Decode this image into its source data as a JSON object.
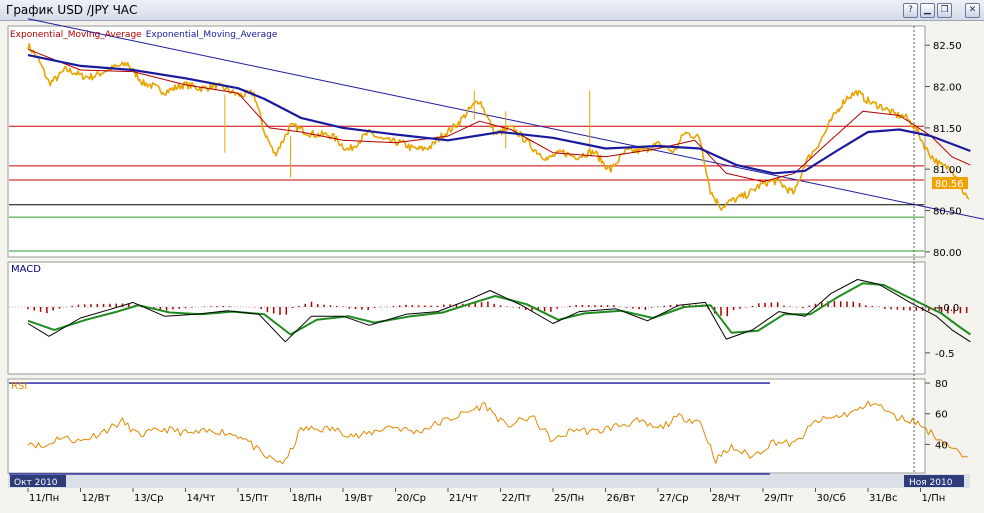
{
  "window": {
    "title": "График USD /JPY  ЧАС",
    "buttons": [
      {
        "name": "help-button",
        "glyph": "?"
      },
      {
        "name": "minimize-button",
        "glyph": "▁"
      },
      {
        "name": "restore-button",
        "glyph": "❐"
      },
      {
        "name": "close-button",
        "glyph": "✕"
      }
    ]
  },
  "colors": {
    "price": "#e8a400",
    "ema_fast": "#b00000",
    "ema_slow": "#1a1aa0",
    "trendline": "#1a1aa0",
    "level_red": "#cc0000",
    "level_green": "#2e9a2e",
    "level_black": "#000000",
    "macd_line": "#000000",
    "macd_signal": "#1e8c1e",
    "macd_hist": "#b00000",
    "rsi_line": "#e08a00",
    "rsi_levels": "#1a1aa0",
    "price_tag": "#f2a200"
  },
  "chart_data": [
    {
      "type": "line",
      "title": "USD/JPY",
      "legend": [
        "Exponential_Moving_Average",
        "Exponential_Moving_Average"
      ],
      "y_ticks": [
        "82.50",
        "82.00",
        "81.50",
        "81.00",
        "80.50",
        "80.00"
      ],
      "ylim": [
        79.95,
        82.72
      ],
      "current_price_label": "80.56",
      "horizontal_levels": [
        {
          "value": 81.52,
          "color": "red"
        },
        {
          "value": 81.04,
          "color": "red"
        },
        {
          "value": 80.87,
          "color": "red"
        },
        {
          "value": 80.57,
          "color": "black"
        },
        {
          "value": 80.42,
          "color": "green"
        },
        {
          "value": 80.01,
          "color": "green"
        }
      ],
      "trendline": [
        {
          "x": 0,
          "y": 82.82
        },
        {
          "x": 21.1,
          "y": 80.01
        }
      ],
      "price_keypoints": [
        {
          "x": 0.0,
          "y": 82.5
        },
        {
          "x": 0.2,
          "y": 82.3
        },
        {
          "x": 0.4,
          "y": 82.05
        },
        {
          "x": 0.7,
          "y": 82.2
        },
        {
          "x": 1.0,
          "y": 82.12
        },
        {
          "x": 1.3,
          "y": 82.15
        },
        {
          "x": 1.6,
          "y": 82.2
        },
        {
          "x": 1.9,
          "y": 82.3
        },
        {
          "x": 2.2,
          "y": 82.02
        },
        {
          "x": 2.6,
          "y": 81.96
        },
        {
          "x": 3.0,
          "y": 82.0
        },
        {
          "x": 3.5,
          "y": 82.0
        },
        {
          "x": 4.0,
          "y": 81.92
        },
        {
          "x": 4.3,
          "y": 81.9
        },
        {
          "x": 4.5,
          "y": 81.45
        },
        {
          "x": 4.7,
          "y": 81.2
        },
        {
          "x": 5.0,
          "y": 81.5
        },
        {
          "x": 5.4,
          "y": 81.45
        },
        {
          "x": 5.8,
          "y": 81.38
        },
        {
          "x": 6.1,
          "y": 81.25
        },
        {
          "x": 6.5,
          "y": 81.42
        },
        {
          "x": 6.9,
          "y": 81.35
        },
        {
          "x": 7.3,
          "y": 81.25
        },
        {
          "x": 7.7,
          "y": 81.28
        },
        {
          "x": 8.0,
          "y": 81.45
        },
        {
          "x": 8.3,
          "y": 81.65
        },
        {
          "x": 8.6,
          "y": 81.82
        },
        {
          "x": 8.9,
          "y": 81.45
        },
        {
          "x": 9.2,
          "y": 81.48
        },
        {
          "x": 9.5,
          "y": 81.35
        },
        {
          "x": 9.9,
          "y": 81.1
        },
        {
          "x": 10.2,
          "y": 81.22
        },
        {
          "x": 10.5,
          "y": 81.15
        },
        {
          "x": 10.8,
          "y": 81.2
        },
        {
          "x": 11.1,
          "y": 81.0
        },
        {
          "x": 11.4,
          "y": 81.2
        },
        {
          "x": 11.7,
          "y": 81.25
        },
        {
          "x": 12.0,
          "y": 81.28
        },
        {
          "x": 12.3,
          "y": 81.22
        },
        {
          "x": 12.5,
          "y": 81.45
        },
        {
          "x": 12.8,
          "y": 81.35
        },
        {
          "x": 13.0,
          "y": 80.75
        },
        {
          "x": 13.2,
          "y": 80.55
        },
        {
          "x": 13.5,
          "y": 80.62
        },
        {
          "x": 13.9,
          "y": 80.8
        },
        {
          "x": 14.3,
          "y": 80.85
        },
        {
          "x": 14.6,
          "y": 80.72
        },
        {
          "x": 14.8,
          "y": 81.05
        },
        {
          "x": 15.0,
          "y": 81.25
        },
        {
          "x": 15.3,
          "y": 81.6
        },
        {
          "x": 15.6,
          "y": 81.85
        },
        {
          "x": 15.8,
          "y": 81.95
        },
        {
          "x": 16.1,
          "y": 81.78
        },
        {
          "x": 16.4,
          "y": 81.7
        },
        {
          "x": 16.7,
          "y": 81.65
        },
        {
          "x": 16.9,
          "y": 81.48
        },
        {
          "x": 17.1,
          "y": 81.25
        },
        {
          "x": 17.4,
          "y": 81.05
        },
        {
          "x": 17.6,
          "y": 80.98
        },
        {
          "x": 17.8,
          "y": 80.75
        },
        {
          "x": 17.95,
          "y": 80.6
        }
      ],
      "ema_fast_keypoints": [
        {
          "x": 0.0,
          "y": 82.45
        },
        {
          "x": 1.0,
          "y": 82.2
        },
        {
          "x": 2.0,
          "y": 82.18
        },
        {
          "x": 3.0,
          "y": 82.02
        },
        {
          "x": 4.0,
          "y": 81.92
        },
        {
          "x": 4.6,
          "y": 81.5
        },
        {
          "x": 5.2,
          "y": 81.45
        },
        {
          "x": 6.0,
          "y": 81.35
        },
        {
          "x": 7.0,
          "y": 81.32
        },
        {
          "x": 8.0,
          "y": 81.4
        },
        {
          "x": 8.6,
          "y": 81.58
        },
        {
          "x": 9.2,
          "y": 81.48
        },
        {
          "x": 10.0,
          "y": 81.2
        },
        {
          "x": 11.0,
          "y": 81.15
        },
        {
          "x": 12.0,
          "y": 81.25
        },
        {
          "x": 12.7,
          "y": 81.35
        },
        {
          "x": 13.3,
          "y": 80.95
        },
        {
          "x": 14.0,
          "y": 80.85
        },
        {
          "x": 14.6,
          "y": 80.95
        },
        {
          "x": 15.2,
          "y": 81.3
        },
        {
          "x": 15.9,
          "y": 81.7
        },
        {
          "x": 16.6,
          "y": 81.65
        },
        {
          "x": 17.2,
          "y": 81.4
        },
        {
          "x": 17.6,
          "y": 81.15
        },
        {
          "x": 17.95,
          "y": 81.05
        }
      ],
      "ema_slow_keypoints": [
        {
          "x": 0.0,
          "y": 82.38
        },
        {
          "x": 1.0,
          "y": 82.25
        },
        {
          "x": 2.0,
          "y": 82.2
        },
        {
          "x": 3.0,
          "y": 82.1
        },
        {
          "x": 4.0,
          "y": 81.98
        },
        {
          "x": 4.5,
          "y": 81.85
        },
        {
          "x": 5.2,
          "y": 81.62
        },
        {
          "x": 6.0,
          "y": 81.5
        },
        {
          "x": 7.0,
          "y": 81.42
        },
        {
          "x": 8.0,
          "y": 81.35
        },
        {
          "x": 9.0,
          "y": 81.45
        },
        {
          "x": 10.0,
          "y": 81.38
        },
        {
          "x": 11.0,
          "y": 81.25
        },
        {
          "x": 12.0,
          "y": 81.28
        },
        {
          "x": 12.8,
          "y": 81.25
        },
        {
          "x": 13.5,
          "y": 81.05
        },
        {
          "x": 14.2,
          "y": 80.95
        },
        {
          "x": 14.8,
          "y": 80.98
        },
        {
          "x": 15.4,
          "y": 81.22
        },
        {
          "x": 16.0,
          "y": 81.45
        },
        {
          "x": 16.6,
          "y": 81.48
        },
        {
          "x": 17.2,
          "y": 81.4
        },
        {
          "x": 17.7,
          "y": 81.28
        },
        {
          "x": 17.95,
          "y": 81.22
        }
      ]
    },
    {
      "type": "line",
      "title": "MACD",
      "y_ticks": [
        "+0.0",
        "-0.5"
      ],
      "ylim": [
        -0.72,
        0.48
      ],
      "macd_keypoints": [
        {
          "x": 0.0,
          "y": -0.18
        },
        {
          "x": 0.4,
          "y": -0.32
        },
        {
          "x": 1.0,
          "y": -0.12
        },
        {
          "x": 1.6,
          "y": -0.02
        },
        {
          "x": 2.0,
          "y": 0.05
        },
        {
          "x": 2.6,
          "y": -0.1
        },
        {
          "x": 3.2,
          "y": -0.08
        },
        {
          "x": 3.8,
          "y": -0.04
        },
        {
          "x": 4.4,
          "y": -0.08
        },
        {
          "x": 4.9,
          "y": -0.38
        },
        {
          "x": 5.4,
          "y": -0.1
        },
        {
          "x": 6.0,
          "y": -0.1
        },
        {
          "x": 6.5,
          "y": -0.2
        },
        {
          "x": 7.2,
          "y": -0.08
        },
        {
          "x": 7.8,
          "y": -0.05
        },
        {
          "x": 8.4,
          "y": 0.08
        },
        {
          "x": 8.8,
          "y": 0.18
        },
        {
          "x": 9.4,
          "y": 0.02
        },
        {
          "x": 10.0,
          "y": -0.18
        },
        {
          "x": 10.5,
          "y": -0.05
        },
        {
          "x": 11.2,
          "y": -0.02
        },
        {
          "x": 11.8,
          "y": -0.15
        },
        {
          "x": 12.4,
          "y": 0.02
        },
        {
          "x": 12.9,
          "y": 0.05
        },
        {
          "x": 13.3,
          "y": -0.35
        },
        {
          "x": 13.8,
          "y": -0.25
        },
        {
          "x": 14.3,
          "y": -0.05
        },
        {
          "x": 14.8,
          "y": -0.1
        },
        {
          "x": 15.3,
          "y": 0.15
        },
        {
          "x": 15.8,
          "y": 0.3
        },
        {
          "x": 16.2,
          "y": 0.25
        },
        {
          "x": 16.8,
          "y": 0.05
        },
        {
          "x": 17.3,
          "y": -0.1
        },
        {
          "x": 17.6,
          "y": -0.25
        },
        {
          "x": 17.95,
          "y": -0.38
        }
      ],
      "signal_keypoints": [
        {
          "x": 0.0,
          "y": -0.15
        },
        {
          "x": 0.5,
          "y": -0.25
        },
        {
          "x": 1.1,
          "y": -0.14
        },
        {
          "x": 1.7,
          "y": -0.05
        },
        {
          "x": 2.1,
          "y": 0.02
        },
        {
          "x": 2.7,
          "y": -0.06
        },
        {
          "x": 3.3,
          "y": -0.08
        },
        {
          "x": 3.9,
          "y": -0.05
        },
        {
          "x": 4.5,
          "y": -0.08
        },
        {
          "x": 5.0,
          "y": -0.3
        },
        {
          "x": 5.5,
          "y": -0.14
        },
        {
          "x": 6.1,
          "y": -0.1
        },
        {
          "x": 6.6,
          "y": -0.17
        },
        {
          "x": 7.3,
          "y": -0.1
        },
        {
          "x": 7.9,
          "y": -0.06
        },
        {
          "x": 8.5,
          "y": 0.05
        },
        {
          "x": 8.9,
          "y": 0.12
        },
        {
          "x": 9.5,
          "y": 0.03
        },
        {
          "x": 10.1,
          "y": -0.14
        },
        {
          "x": 10.6,
          "y": -0.07
        },
        {
          "x": 11.3,
          "y": -0.04
        },
        {
          "x": 11.9,
          "y": -0.12
        },
        {
          "x": 12.5,
          "y": 0.0
        },
        {
          "x": 13.0,
          "y": 0.02
        },
        {
          "x": 13.4,
          "y": -0.28
        },
        {
          "x": 13.9,
          "y": -0.26
        },
        {
          "x": 14.4,
          "y": -0.08
        },
        {
          "x": 14.9,
          "y": -0.08
        },
        {
          "x": 15.4,
          "y": 0.1
        },
        {
          "x": 15.9,
          "y": 0.26
        },
        {
          "x": 16.3,
          "y": 0.24
        },
        {
          "x": 16.9,
          "y": 0.07
        },
        {
          "x": 17.4,
          "y": -0.07
        },
        {
          "x": 17.7,
          "y": -0.2
        },
        {
          "x": 17.95,
          "y": -0.3
        }
      ]
    },
    {
      "type": "line",
      "title": "RSI",
      "y_ticks": [
        "80",
        "60",
        "40"
      ],
      "ylim": [
        22,
        82
      ],
      "levels": [
        80,
        20
      ],
      "rsi_keypoints": [
        {
          "x": 0.0,
          "y": 42
        },
        {
          "x": 0.3,
          "y": 38
        },
        {
          "x": 0.6,
          "y": 45
        },
        {
          "x": 1.0,
          "y": 42
        },
        {
          "x": 1.4,
          "y": 48
        },
        {
          "x": 1.8,
          "y": 55
        },
        {
          "x": 2.1,
          "y": 46
        },
        {
          "x": 2.6,
          "y": 50
        },
        {
          "x": 3.1,
          "y": 47
        },
        {
          "x": 3.6,
          "y": 49
        },
        {
          "x": 4.1,
          "y": 45
        },
        {
          "x": 4.5,
          "y": 32
        },
        {
          "x": 4.9,
          "y": 28
        },
        {
          "x": 5.2,
          "y": 50
        },
        {
          "x": 5.8,
          "y": 50
        },
        {
          "x": 6.3,
          "y": 45
        },
        {
          "x": 6.9,
          "y": 52
        },
        {
          "x": 7.4,
          "y": 48
        },
        {
          "x": 7.9,
          "y": 55
        },
        {
          "x": 8.3,
          "y": 60
        },
        {
          "x": 8.7,
          "y": 66
        },
        {
          "x": 9.1,
          "y": 52
        },
        {
          "x": 9.6,
          "y": 58
        },
        {
          "x": 10.0,
          "y": 42
        },
        {
          "x": 10.4,
          "y": 50
        },
        {
          "x": 10.8,
          "y": 48
        },
        {
          "x": 11.2,
          "y": 52
        },
        {
          "x": 11.6,
          "y": 55
        },
        {
          "x": 12.0,
          "y": 50
        },
        {
          "x": 12.4,
          "y": 58
        },
        {
          "x": 12.8,
          "y": 55
        },
        {
          "x": 13.1,
          "y": 30
        },
        {
          "x": 13.4,
          "y": 38
        },
        {
          "x": 13.8,
          "y": 32
        },
        {
          "x": 14.2,
          "y": 42
        },
        {
          "x": 14.6,
          "y": 40
        },
        {
          "x": 15.0,
          "y": 55
        },
        {
          "x": 15.4,
          "y": 58
        },
        {
          "x": 15.8,
          "y": 62
        },
        {
          "x": 16.1,
          "y": 68
        },
        {
          "x": 16.5,
          "y": 58
        },
        {
          "x": 16.9,
          "y": 55
        },
        {
          "x": 17.3,
          "y": 45
        },
        {
          "x": 17.6,
          "y": 38
        },
        {
          "x": 17.95,
          "y": 28
        }
      ]
    }
  ],
  "time_axis": {
    "month_left": "Окт 2010",
    "month_right": "Ноя 2010",
    "labels": [
      "11/Пн",
      "12/Вт",
      "13/Ср",
      "14/Чт",
      "15/Пт",
      "18/Пн",
      "19/Вт",
      "20/Ср",
      "21/Чт",
      "22/Пт",
      "25/Пн",
      "26/Вт",
      "27/Ср",
      "28/Чт",
      "29/Пт",
      "30/Сб",
      "31/Вс",
      "1/Пн"
    ]
  }
}
